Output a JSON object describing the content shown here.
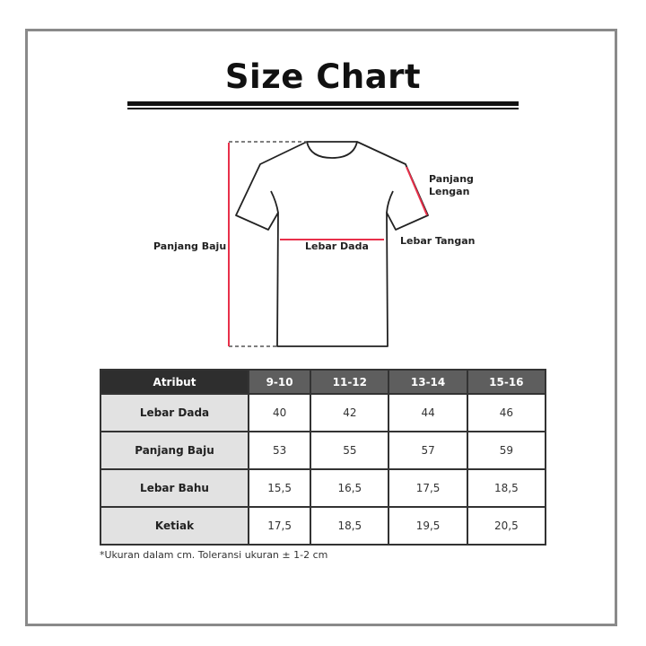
{
  "title": "Size Chart",
  "diagram": {
    "labels": {
      "panjang_baju": "Panjang Baju",
      "lebar_dada": "Lebar Dada",
      "panjang_lengan_1": "Panjang",
      "panjang_lengan_2": "Lengan",
      "lebar_tangan": "Lebar Tangan"
    },
    "measure_color": "#e8304a"
  },
  "table": {
    "header": [
      "Atribut",
      "9-10",
      "11-12",
      "13-14",
      "15-16"
    ],
    "rows": [
      {
        "attr": "Lebar Dada",
        "values": [
          "40",
          "42",
          "44",
          "46"
        ]
      },
      {
        "attr": "Panjang Baju",
        "values": [
          "53",
          "55",
          "57",
          "59"
        ]
      },
      {
        "attr": "Lebar Bahu",
        "values": [
          "15,5",
          "16,5",
          "17,5",
          "18,5"
        ]
      },
      {
        "attr": "Ketiak",
        "values": [
          "17,5",
          "18,5",
          "19,5",
          "20,5"
        ]
      }
    ]
  },
  "note": "*Ukuran dalam cm. Toleransi ukuran ± 1-2 cm"
}
